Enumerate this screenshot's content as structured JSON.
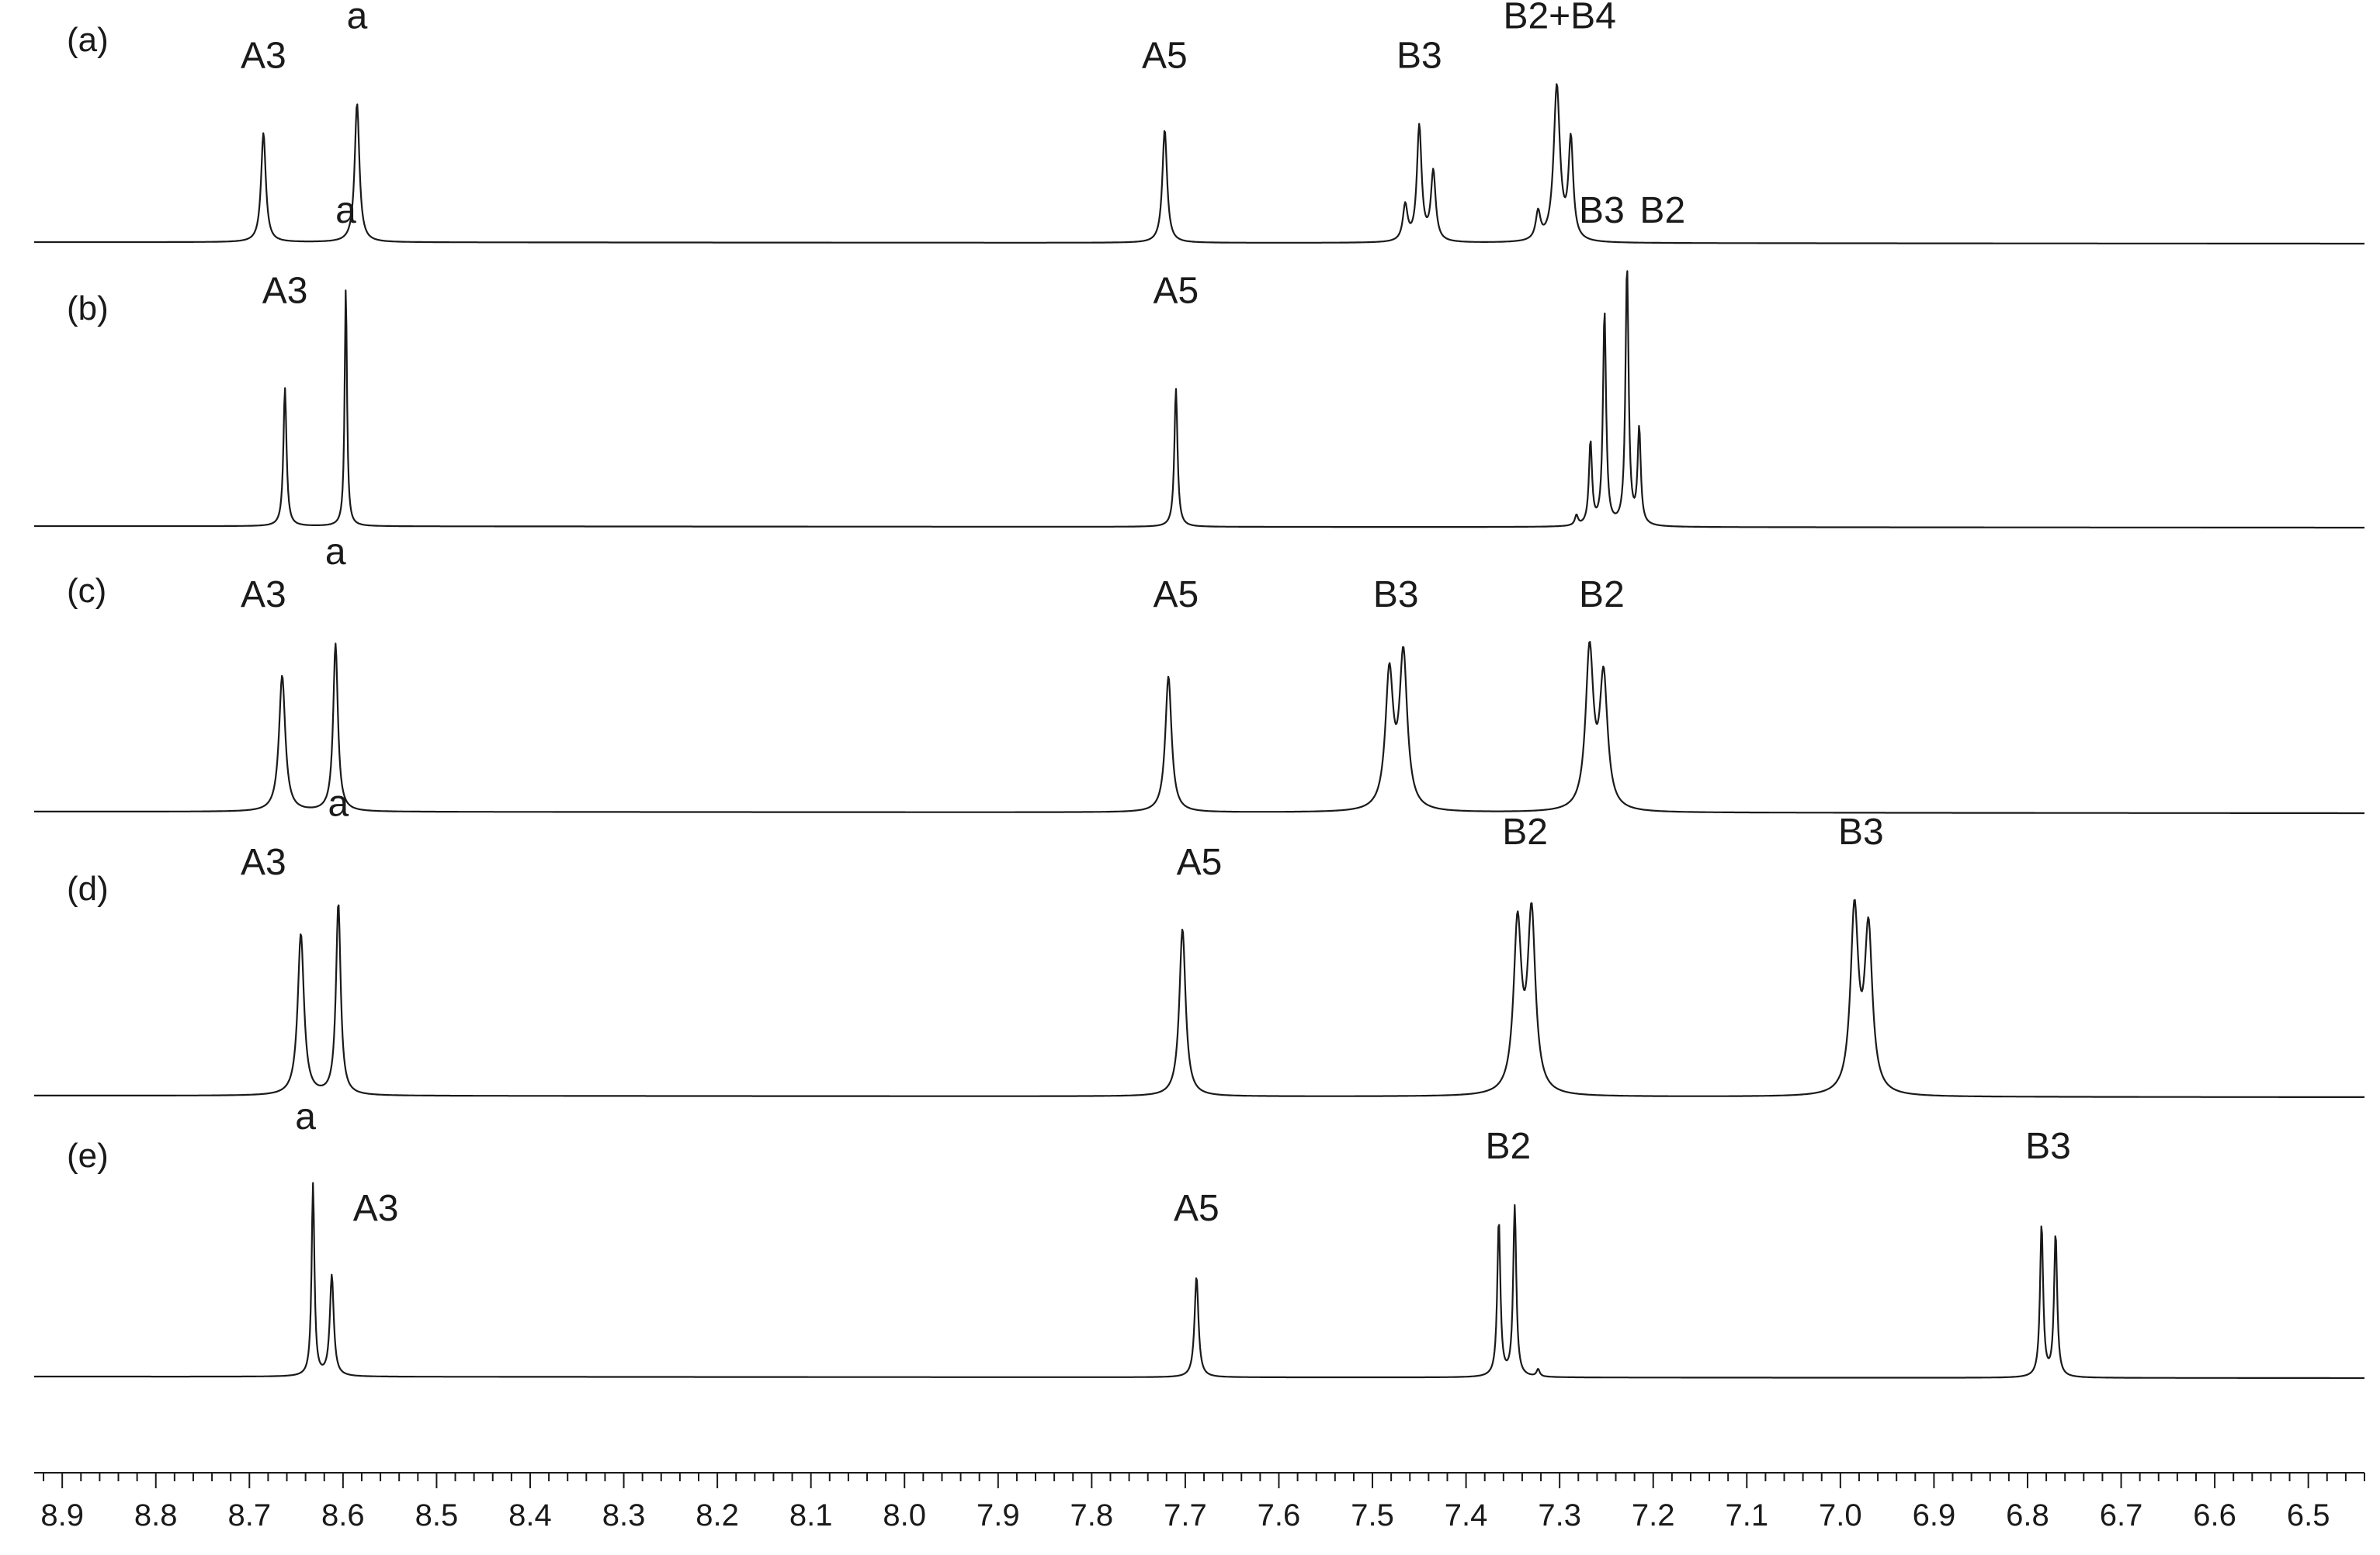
{
  "chart_data": {
    "type": "line",
    "title": "",
    "xlabel": "",
    "ylabel": "",
    "x_axis": {
      "min": 6.44,
      "max": 8.93,
      "reversed": true,
      "major_step": 0.1,
      "minor_step": 0.02,
      "tick_labels": [
        "8.9",
        "8.8",
        "8.7",
        "8.6",
        "8.5",
        "8.4",
        "8.3",
        "8.2",
        "8.1",
        "8.0",
        "7.9",
        "7.8",
        "7.7",
        "7.6",
        "7.5",
        "7.4",
        "7.3",
        "7.2",
        "7.1",
        "7.0",
        "6.9",
        "6.8",
        "6.7",
        "6.6",
        "6.5"
      ]
    },
    "grid": false,
    "line_color": "#1a1a1a",
    "series": [
      {
        "name": "(a)",
        "peaks": [
          {
            "ppm": 8.685,
            "height": 0.55,
            "width": 0.003
          },
          {
            "ppm": 8.585,
            "height": 0.7,
            "width": 0.003
          },
          {
            "ppm": 7.722,
            "height": 0.57,
            "width": 0.003
          },
          {
            "ppm": 7.465,
            "height": 0.18,
            "width": 0.003
          },
          {
            "ppm": 7.45,
            "height": 0.58,
            "width": 0.003
          },
          {
            "ppm": 7.435,
            "height": 0.35,
            "width": 0.003
          },
          {
            "ppm": 7.323,
            "height": 0.14,
            "width": 0.003
          },
          {
            "ppm": 7.303,
            "height": 0.78,
            "width": 0.004
          },
          {
            "ppm": 7.288,
            "height": 0.5,
            "width": 0.003
          }
        ],
        "labels": [
          {
            "text": "A3",
            "ppm": 8.685,
            "level": 0.83
          },
          {
            "text": "a",
            "ppm": 8.585,
            "level": 1.03
          },
          {
            "text": "A5",
            "ppm": 7.722,
            "level": 0.83
          },
          {
            "text": "B3",
            "ppm": 7.45,
            "level": 0.83
          },
          {
            "text": "B2+B4",
            "ppm": 7.3,
            "level": 1.03
          }
        ]
      },
      {
        "name": "(b)",
        "peaks": [
          {
            "ppm": 8.662,
            "height": 0.55,
            "width": 0.002
          },
          {
            "ppm": 8.597,
            "height": 0.95,
            "width": 0.0015
          },
          {
            "ppm": 7.71,
            "height": 0.55,
            "width": 0.002
          },
          {
            "ppm": 7.282,
            "height": 0.04,
            "width": 0.002
          },
          {
            "ppm": 7.267,
            "height": 0.33,
            "width": 0.002
          },
          {
            "ppm": 7.252,
            "height": 0.85,
            "width": 0.002
          },
          {
            "ppm": 7.228,
            "height": 1.03,
            "width": 0.002
          },
          {
            "ppm": 7.215,
            "height": 0.38,
            "width": 0.002
          }
        ],
        "labels": [
          {
            "text": "A3",
            "ppm": 8.662,
            "level": 0.85
          },
          {
            "text": "a",
            "ppm": 8.597,
            "level": 1.17
          },
          {
            "text": "A5",
            "ppm": 7.71,
            "level": 0.85
          },
          {
            "text": "B3",
            "ppm": 7.255,
            "level": 1.17
          },
          {
            "text": "B2",
            "ppm": 7.19,
            "level": 1.17
          }
        ]
      },
      {
        "name": "(c)",
        "peaks": [
          {
            "ppm": 8.665,
            "height": 0.73,
            "width": 0.004
          },
          {
            "ppm": 8.608,
            "height": 0.9,
            "width": 0.003
          },
          {
            "ppm": 7.718,
            "height": 0.73,
            "width": 0.004
          },
          {
            "ppm": 7.482,
            "height": 0.72,
            "width": 0.005
          },
          {
            "ppm": 7.467,
            "height": 0.82,
            "width": 0.005
          },
          {
            "ppm": 7.268,
            "height": 0.85,
            "width": 0.005
          },
          {
            "ppm": 7.253,
            "height": 0.7,
            "width": 0.005
          }
        ],
        "labels": [
          {
            "text": "A3",
            "ppm": 8.685,
            "level": 1.05
          },
          {
            "text": "a",
            "ppm": 8.608,
            "level": 1.28
          },
          {
            "text": "A5",
            "ppm": 7.71,
            "level": 1.05
          },
          {
            "text": "B3",
            "ppm": 7.475,
            "level": 1.05
          },
          {
            "text": "B2",
            "ppm": 7.255,
            "level": 1.05
          }
        ]
      },
      {
        "name": "(d)",
        "peaks": [
          {
            "ppm": 8.645,
            "height": 0.8,
            "width": 0.004
          },
          {
            "ppm": 8.605,
            "height": 0.95,
            "width": 0.003
          },
          {
            "ppm": 7.703,
            "height": 0.83,
            "width": 0.004
          },
          {
            "ppm": 7.345,
            "height": 0.83,
            "width": 0.005
          },
          {
            "ppm": 7.33,
            "height": 0.88,
            "width": 0.005
          },
          {
            "ppm": 6.985,
            "height": 0.9,
            "width": 0.005
          },
          {
            "ppm": 6.97,
            "height": 0.8,
            "width": 0.005
          }
        ],
        "labels": [
          {
            "text": "A3",
            "ppm": 8.685,
            "level": 1.05
          },
          {
            "text": "a",
            "ppm": 8.605,
            "level": 1.34
          },
          {
            "text": "A5",
            "ppm": 7.685,
            "level": 1.05
          },
          {
            "text": "B2",
            "ppm": 7.337,
            "level": 1.2
          },
          {
            "text": "B3",
            "ppm": 6.978,
            "level": 1.2
          }
        ]
      },
      {
        "name": "(e)",
        "peaks": [
          {
            "ppm": 8.632,
            "height": 1.05,
            "width": 0.0018
          },
          {
            "ppm": 8.612,
            "height": 0.55,
            "width": 0.0025
          },
          {
            "ppm": 7.688,
            "height": 0.55,
            "width": 0.0025
          },
          {
            "ppm": 7.365,
            "height": 0.85,
            "width": 0.002
          },
          {
            "ppm": 7.348,
            "height": 0.93,
            "width": 0.002
          },
          {
            "ppm": 7.323,
            "height": 0.04,
            "width": 0.002
          },
          {
            "ppm": 6.785,
            "height": 0.83,
            "width": 0.002
          },
          {
            "ppm": 6.77,
            "height": 0.78,
            "width": 0.002
          }
        ],
        "labels": [
          {
            "text": "a",
            "ppm": 8.64,
            "level": 1.3
          },
          {
            "text": "A3",
            "ppm": 8.565,
            "level": 0.8
          },
          {
            "text": "A5",
            "ppm": 7.688,
            "level": 0.8
          },
          {
            "text": "B2",
            "ppm": 7.355,
            "level": 1.14
          },
          {
            "text": "B3",
            "ppm": 6.778,
            "level": 1.14
          }
        ]
      }
    ]
  }
}
